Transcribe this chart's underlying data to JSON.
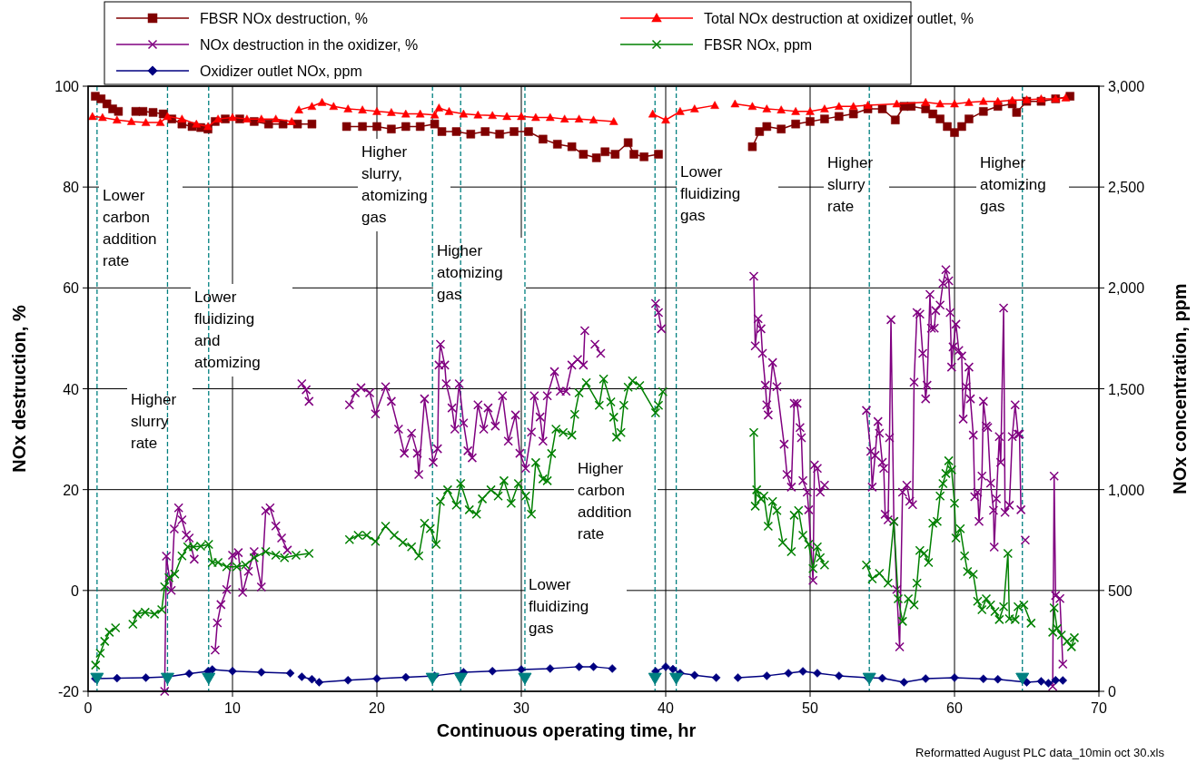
{
  "chart_data": {
    "type": "line",
    "xlabel": "Continuous operating time, hr",
    "ylabel": "NOx destruction, %",
    "y2label": "NOx concentration, ppm",
    "xlim": [
      0,
      70
    ],
    "xticks": [
      0,
      10,
      20,
      30,
      40,
      50,
      60,
      70
    ],
    "ylim": [
      -20,
      100
    ],
    "yticks": [
      -20,
      0,
      20,
      40,
      60,
      80,
      100
    ],
    "y2lim": [
      0,
      3000
    ],
    "y2ticks": [
      0,
      500,
      {
        "value": 1000,
        "label": "1,000"
      },
      {
        "value": 1500,
        "label": "1,500"
      },
      {
        "value": 2000,
        "label": "2,000"
      },
      {
        "value": 2500,
        "label": "2,500"
      },
      {
        "value": 3000,
        "label": "3,000"
      }
    ],
    "grid": true,
    "legend": "top",
    "line_style": "solid",
    "series": [
      {
        "name": "FBSR NOx destruction, %",
        "color": "#800000",
        "marker": "square",
        "x": [
          0.5,
          0.9,
          1.3,
          1.7,
          2.1,
          2.7,
          3.3,
          3.8,
          4.5,
          5.2,
          5.8,
          6.5,
          7.2,
          7.8,
          8.3,
          8.8,
          9.5,
          10.5,
          11.5,
          12.5,
          13.5,
          14.5,
          15.5,
          16.7,
          17.9,
          19,
          20,
          21,
          22,
          23,
          24,
          24.5,
          25.5,
          26.5,
          27.5,
          28.5,
          29.5,
          30.5,
          31.5,
          32.5,
          33.5,
          34.3,
          35.2,
          35.5,
          35.8,
          36.5,
          37.4,
          37.8,
          38.5,
          39.5,
          42.5,
          46,
          46.5,
          47,
          48,
          49,
          50,
          51,
          52,
          53,
          54,
          55,
          55.9,
          56.5,
          57,
          58,
          58.5,
          59,
          59.5,
          60,
          60.5,
          61,
          62,
          63,
          64,
          64.3,
          65,
          66,
          67,
          68
        ],
        "values": [
          98,
          97.5,
          96.5,
          95.5,
          95,
          null,
          95,
          95,
          94.8,
          94.5,
          93.5,
          92.5,
          92,
          91.8,
          91.5,
          93,
          93.5,
          93.5,
          93,
          92.5,
          92.5,
          92.5,
          92.5,
          null,
          92,
          92,
          92,
          91.5,
          92,
          92,
          92.5,
          91,
          91,
          90.5,
          91,
          90.5,
          91,
          91,
          89.5,
          88.5,
          88,
          86.5,
          85.8,
          null,
          87,
          86.5,
          88.8,
          86.5,
          86,
          86.5,
          null,
          88,
          91,
          92,
          91.5,
          92.5,
          93,
          93.5,
          94,
          94.5,
          95.5,
          95.5,
          93.3,
          96,
          96,
          95.5,
          94.5,
          93.5,
          92,
          90.8,
          92,
          93.5,
          95,
          96,
          96.5,
          94.8,
          97,
          97,
          97.5,
          98
        ]
      },
      {
        "name": "Total NOx destruction at oxidizer outlet, %",
        "color": "#ff0000",
        "marker": "triangle",
        "x": [
          0.3,
          1,
          2,
          3,
          4,
          5,
          5.5,
          6.5,
          7.5,
          8.3,
          9,
          10,
          11,
          12,
          13,
          14.1,
          14.35,
          14.6,
          15.5,
          16.2,
          17,
          18,
          19,
          20,
          21,
          22,
          23,
          24,
          24.3,
          25,
          26,
          27,
          28,
          29,
          30,
          31,
          32,
          33,
          34,
          35,
          36.4,
          37.8,
          39.1,
          40,
          41,
          42,
          43.4,
          44.1,
          44.8,
          46,
          47,
          48,
          49,
          50,
          51,
          52,
          53,
          54,
          56,
          58,
          59,
          60,
          61,
          62,
          63,
          64,
          65,
          66,
          67,
          67.7
        ],
        "values": [
          94,
          93.8,
          93.3,
          93,
          92.8,
          92.8,
          94,
          93.5,
          92.5,
          92,
          93.5,
          93.8,
          93.5,
          93.5,
          93.5,
          93,
          null,
          95.3,
          96,
          96.8,
          96,
          95.5,
          95.3,
          95,
          94.8,
          94.5,
          94.5,
          94.3,
          95.7,
          95,
          94.5,
          94.3,
          94.2,
          94,
          94,
          93.8,
          93.8,
          93.5,
          93.5,
          93.3,
          93,
          null,
          94.5,
          93.3,
          95,
          95.5,
          96.2,
          null,
          96.5,
          96,
          95.5,
          95.3,
          95,
          95,
          95.5,
          96,
          96,
          96.2,
          96.5,
          96.8,
          96.5,
          96.5,
          96.8,
          97,
          97,
          97.2,
          97.3,
          97.5,
          97.5,
          97.7
        ]
      },
      {
        "name": "NOx destruction in the oxidizer, %",
        "color": "#800080",
        "marker": "cross",
        "x": [
          5.3,
          5.42,
          5.76,
          5.97,
          6.27,
          6.5,
          6.8,
          7.0,
          7.35,
          8.0,
          8.8,
          8.95,
          9.2,
          9.6,
          10.0,
          10.4,
          10.7,
          11.1,
          11.5,
          12.0,
          12.3,
          12.6,
          13.0,
          13.4,
          13.8,
          14.3,
          14.8,
          15.1,
          15.3,
          16.7,
          18.1,
          18.5,
          18.9,
          19.5,
          19.9,
          20.6,
          21.0,
          21.5,
          21.9,
          22.4,
          22.8,
          22.9,
          23.3,
          23.9,
          24.2,
          24.3,
          24.4,
          24.7,
          24.8,
          25.2,
          25.4,
          25.7,
          26.0,
          26.3,
          26.6,
          27.0,
          27.4,
          27.7,
          28.2,
          28.7,
          29.1,
          29.6,
          29.9,
          30.3,
          30.7,
          30.9,
          31.3,
          31.5,
          31.8,
          32.3,
          32.7,
          33.1,
          33.5,
          33.9,
          34.3,
          34.4,
          34.75,
          35.1,
          35.5,
          37.4,
          39.3,
          39.5,
          39.7,
          43,
          46.1,
          46.2,
          46.4,
          46.6,
          46.7,
          46.9,
          47.0,
          47.1,
          47.4,
          47.7,
          48.2,
          48.4,
          48.7,
          48.9,
          49.1,
          49.3,
          49.4,
          49.5,
          49.8,
          49.9,
          50.2,
          50.3,
          50.5,
          50.7,
          51.0,
          52.5,
          53.9,
          54.2,
          54.3,
          54.5,
          54.7,
          54.8,
          55.0,
          55.1,
          55.2,
          55.4,
          55.5,
          55.6,
          55.8,
          56.0,
          56.2,
          56.4,
          56.7,
          56.9,
          57.1,
          57.2,
          57.4,
          57.6,
          57.8,
          58.0,
          58.1,
          58.3,
          58.4,
          58.6,
          58.7,
          59.0,
          59.2,
          59.4,
          59.6,
          59.7,
          59.8,
          59.9,
          60.1,
          60.3,
          60.5,
          60.6,
          60.8,
          61.0,
          61.1,
          61.3,
          61.4,
          61.6,
          61.7,
          61.9,
          62.0,
          62.2,
          62.3,
          62.5,
          62.7,
          62.75,
          62.9,
          63.1,
          63.2,
          63.4,
          63.5,
          63.8,
          64.0,
          64.2,
          64.4,
          64.5,
          64.6,
          64.75,
          64.9,
          65.8,
          66.8,
          66.9,
          67.0,
          67.3,
          67.5
        ],
        "values": [
          -20,
          6.8,
          0,
          12.2,
          16.4,
          14,
          11,
          10.4,
          6.2,
          null,
          -11.8,
          -6.4,
          -2.8,
          0.2,
          7,
          7.5,
          -0.4,
          3.8,
          7.7,
          0.7,
          15.8,
          16.4,
          12.8,
          10.4,
          8,
          null,
          41,
          39.8,
          37.5,
          null,
          36.8,
          39.2,
          40.2,
          39.2,
          35,
          40.4,
          37.5,
          32,
          27.2,
          31.2,
          27.2,
          23,
          38,
          25.4,
          28.1,
          44.7,
          48.8,
          44.7,
          41,
          36.2,
          32,
          41,
          33.2,
          27.7,
          26.3,
          36.8,
          32,
          36.2,
          32.6,
          38.6,
          29.6,
          34.8,
          27.2,
          24.2,
          31.4,
          38.6,
          34.4,
          29.6,
          38.6,
          43.4,
          39.5,
          39.5,
          44.7,
          45.8,
          44.7,
          51.5,
          null,
          48.8,
          47,
          null,
          56.9,
          55.1,
          51.9,
          null,
          62.3,
          48.5,
          53.9,
          51.9,
          47,
          40.7,
          36.8,
          34.8,
          45.2,
          40.4,
          29,
          23,
          20.5,
          37.1,
          37.1,
          32.3,
          30.3,
          21.8,
          19.5,
          16,
          2,
          24.9,
          24.2,
          19.5,
          20.9,
          null,
          35.7,
          27.6,
          20.5,
          26.8,
          33.5,
          31.2,
          25.4,
          24.2,
          15.1,
          14,
          30.3,
          53.7,
          13.7,
          0.2,
          -11.2,
          19.5,
          20.9,
          17.7,
          17,
          41.3,
          55.1,
          54.8,
          47,
          38,
          40.7,
          58.7,
          52,
          52,
          55.5,
          56.6,
          60.9,
          63.6,
          61.4,
          55.1,
          44.3,
          48.3,
          52.8,
          47.6,
          46.5,
          34,
          40.4,
          44.3,
          38,
          30.8,
          18.6,
          19.5,
          13.7,
          22.7,
          37.5,
          32.6,
          32.3,
          21.3,
          15.9,
          8.6,
          18.2,
          30.5,
          25.4,
          56,
          15.5,
          16.9,
          30.5,
          36.8,
          31,
          31,
          16,
          null,
          10,
          null,
          -19,
          22.7,
          -1,
          -1.6,
          -14.6
        ]
      },
      {
        "name": "FBSR NOx, ppm",
        "color": "#008000",
        "marker": "cross",
        "axis": "y2",
        "x": [
          0.52,
          0.84,
          1.15,
          1.47,
          1.9,
          2.5,
          3.1,
          3.4,
          3.95,
          4.6,
          5.1,
          5.3,
          5.6,
          6.0,
          6.5,
          6.9,
          7.3,
          7.8,
          8.35,
          8.6,
          9.0,
          9.6,
          10.3,
          10.9,
          11.5,
          12.3,
          13.0,
          13.6,
          14.4,
          15.3,
          16.7,
          18.1,
          18.7,
          19.3,
          19.9,
          20.6,
          21.2,
          21.8,
          22.4,
          22.9,
          23.3,
          23.7,
          24.1,
          24.4,
          24.9,
          25.5,
          25.8,
          26.4,
          26.9,
          27.3,
          27.9,
          28.4,
          28.8,
          29.3,
          29.8,
          30.3,
          30.7,
          31.0,
          31.5,
          31.8,
          32.1,
          32.4,
          32.9,
          33.5,
          33.7,
          34.0,
          34.5,
          35.4,
          35.7,
          36.2,
          36.4,
          36.6,
          36.9,
          37.1,
          37.4,
          37.7,
          38.2,
          39.3,
          39.5,
          39.8,
          43,
          46.1,
          46.2,
          46.3,
          46.6,
          46.8,
          47.1,
          47.4,
          47.7,
          48.1,
          48.7,
          48.9,
          49.2,
          49.5,
          49.9,
          50.2,
          50.5,
          50.7,
          51.0,
          52.5,
          53.9,
          54.3,
          54.8,
          55.4,
          55.8,
          56.1,
          56.4,
          56.8,
          57.2,
          57.4,
          57.6,
          57.9,
          58.2,
          58.5,
          58.8,
          59.0,
          59.2,
          59.4,
          59.6,
          59.8,
          60.0,
          60.1,
          60.4,
          60.7,
          60.9,
          61.3,
          61.6,
          61.9,
          62.2,
          62.5,
          62.8,
          63.1,
          63.4,
          63.7,
          63.8,
          64.2,
          64.4,
          64.8,
          65.3,
          66,
          66.8,
          66.9,
          67.1,
          67.4,
          67.8,
          68.1,
          68.3
        ],
        "values": [
          130,
          189,
          248,
          293,
          315,
          null,
          333,
          383,
          392,
          383,
          405,
          518,
          563,
          581,
          671,
          716,
          716,
          720,
          729,
          639,
          639,
          617,
          617,
          626,
          662,
          693,
          675,
          662,
          675,
          684,
          null,
          752,
          774,
          774,
          743,
          819,
          774,
          738,
          716,
          671,
          833,
          806,
          729,
          941,
          999,
          923,
          1030,
          900,
          878,
          954,
          999,
          968,
          1044,
          932,
          1030,
          968,
          878,
          1134,
          1053,
          1044,
          1179,
          1300,
          1283,
          1270,
          1373,
          1480,
          1530,
          1418,
          1548,
          1435,
          1359,
          1260,
          1283,
          1418,
          1508,
          1539,
          1516,
          1381,
          1418,
          1485,
          null,
          1283,
          918,
          999,
          954,
          968,
          819,
          941,
          896,
          738,
          693,
          873,
          896,
          774,
          729,
          608,
          716,
          662,
          626,
          null,
          626,
          558,
          585,
          536,
          842,
          459,
          347,
          459,
          428,
          536,
          698,
          684,
          639,
          833,
          842,
          968,
          1030,
          1080,
          1143,
          1098,
          932,
          760,
          806,
          671,
          594,
          580,
          446,
          405,
          459,
          428,
          396,
          356,
          419,
          684,
          360,
          356,
          419,
          428,
          338,
          null,
          293,
          414,
          311,
          279,
          248,
          221,
          266
        ]
      },
      {
        "name": "Oxidizer outlet NOx, ppm",
        "color": "#000080",
        "marker": "diamond",
        "axis": "y2",
        "x": [
          0.5,
          2,
          4,
          5.5,
          7,
          8.3,
          8.6,
          10,
          12,
          14,
          14.4,
          14.8,
          15.5,
          16,
          18,
          20,
          22,
          24,
          26,
          28,
          30,
          32,
          34,
          35,
          36.3,
          37.8,
          39.3,
          40,
          40.5,
          41,
          42,
          43.5,
          44.2,
          45,
          47,
          48.5,
          49.5,
          50.5,
          52,
          54,
          55,
          56.5,
          58,
          60,
          62,
          63,
          65,
          66,
          66.5,
          67,
          67.5
        ],
        "values": [
          63,
          65,
          68,
          72,
          88,
          99,
          108,
          100,
          95,
          90,
          null,
          72,
          60,
          45,
          55,
          63,
          70,
          77,
          95,
          100,
          108,
          113,
          122,
          122,
          113,
          null,
          99,
          122,
          110,
          90,
          80,
          68,
          null,
          68,
          77,
          90,
          99,
          90,
          77,
          68,
          65,
          45,
          63,
          68,
          62,
          60,
          45,
          50,
          40,
          55,
          54
        ]
      },
      {
        "type": "scatter",
        "color": "#008080",
        "marker": "triangle",
        "x": [
          0.62,
          5.5,
          8.35,
          23.85,
          25.8,
          30.25,
          39.26,
          40.73,
          54.1,
          64.7
        ],
        "values": [
          -17.5,
          -17.5,
          -17.5,
          -17.5,
          -17.5,
          -17.5,
          -17.5,
          -17.5,
          -17.5,
          -17.5
        ]
      }
    ],
    "ref_lines": [
      {
        "axis": "x",
        "value": 0.62,
        "color": "#008080",
        "line_style": "dashed"
      },
      {
        "axis": "x",
        "value": 5.5,
        "color": "#008080",
        "line_style": "dashed"
      },
      {
        "axis": "x",
        "value": 8.35,
        "color": "#008080",
        "line_style": "dashed"
      },
      {
        "axis": "x",
        "value": 23.85,
        "color": "#008080",
        "line_style": "dashed"
      },
      {
        "axis": "x",
        "value": 25.8,
        "color": "#008080",
        "line_style": "dashed"
      },
      {
        "axis": "x",
        "value": 30.25,
        "color": "#008080",
        "line_style": "dashed"
      },
      {
        "axis": "x",
        "value": 39.26,
        "color": "#008080",
        "line_style": "dashed"
      },
      {
        "axis": "x",
        "value": 40.73,
        "color": "#008080",
        "line_style": "dashed"
      },
      {
        "axis": "x",
        "value": 54.1,
        "color": "#008080",
        "line_style": "dashed"
      },
      {
        "axis": "x",
        "value": 64.7,
        "color": "#008080",
        "line_style": "dashed"
      }
    ],
    "annotations": [
      "Lower carbon addition rate",
      "Higher slurry rate",
      "Lower fluidizing and atomizing",
      "Higher slurry, atomizing gas",
      "Higher atomizing gas",
      "Higher carbon addition rate",
      "Lower fluidizing gas",
      "Lower fluidizing gas",
      "Higher slurry rate",
      "Higher atomizing gas",
      "Reformatted August PLC data_10min oct 30.xls"
    ]
  }
}
